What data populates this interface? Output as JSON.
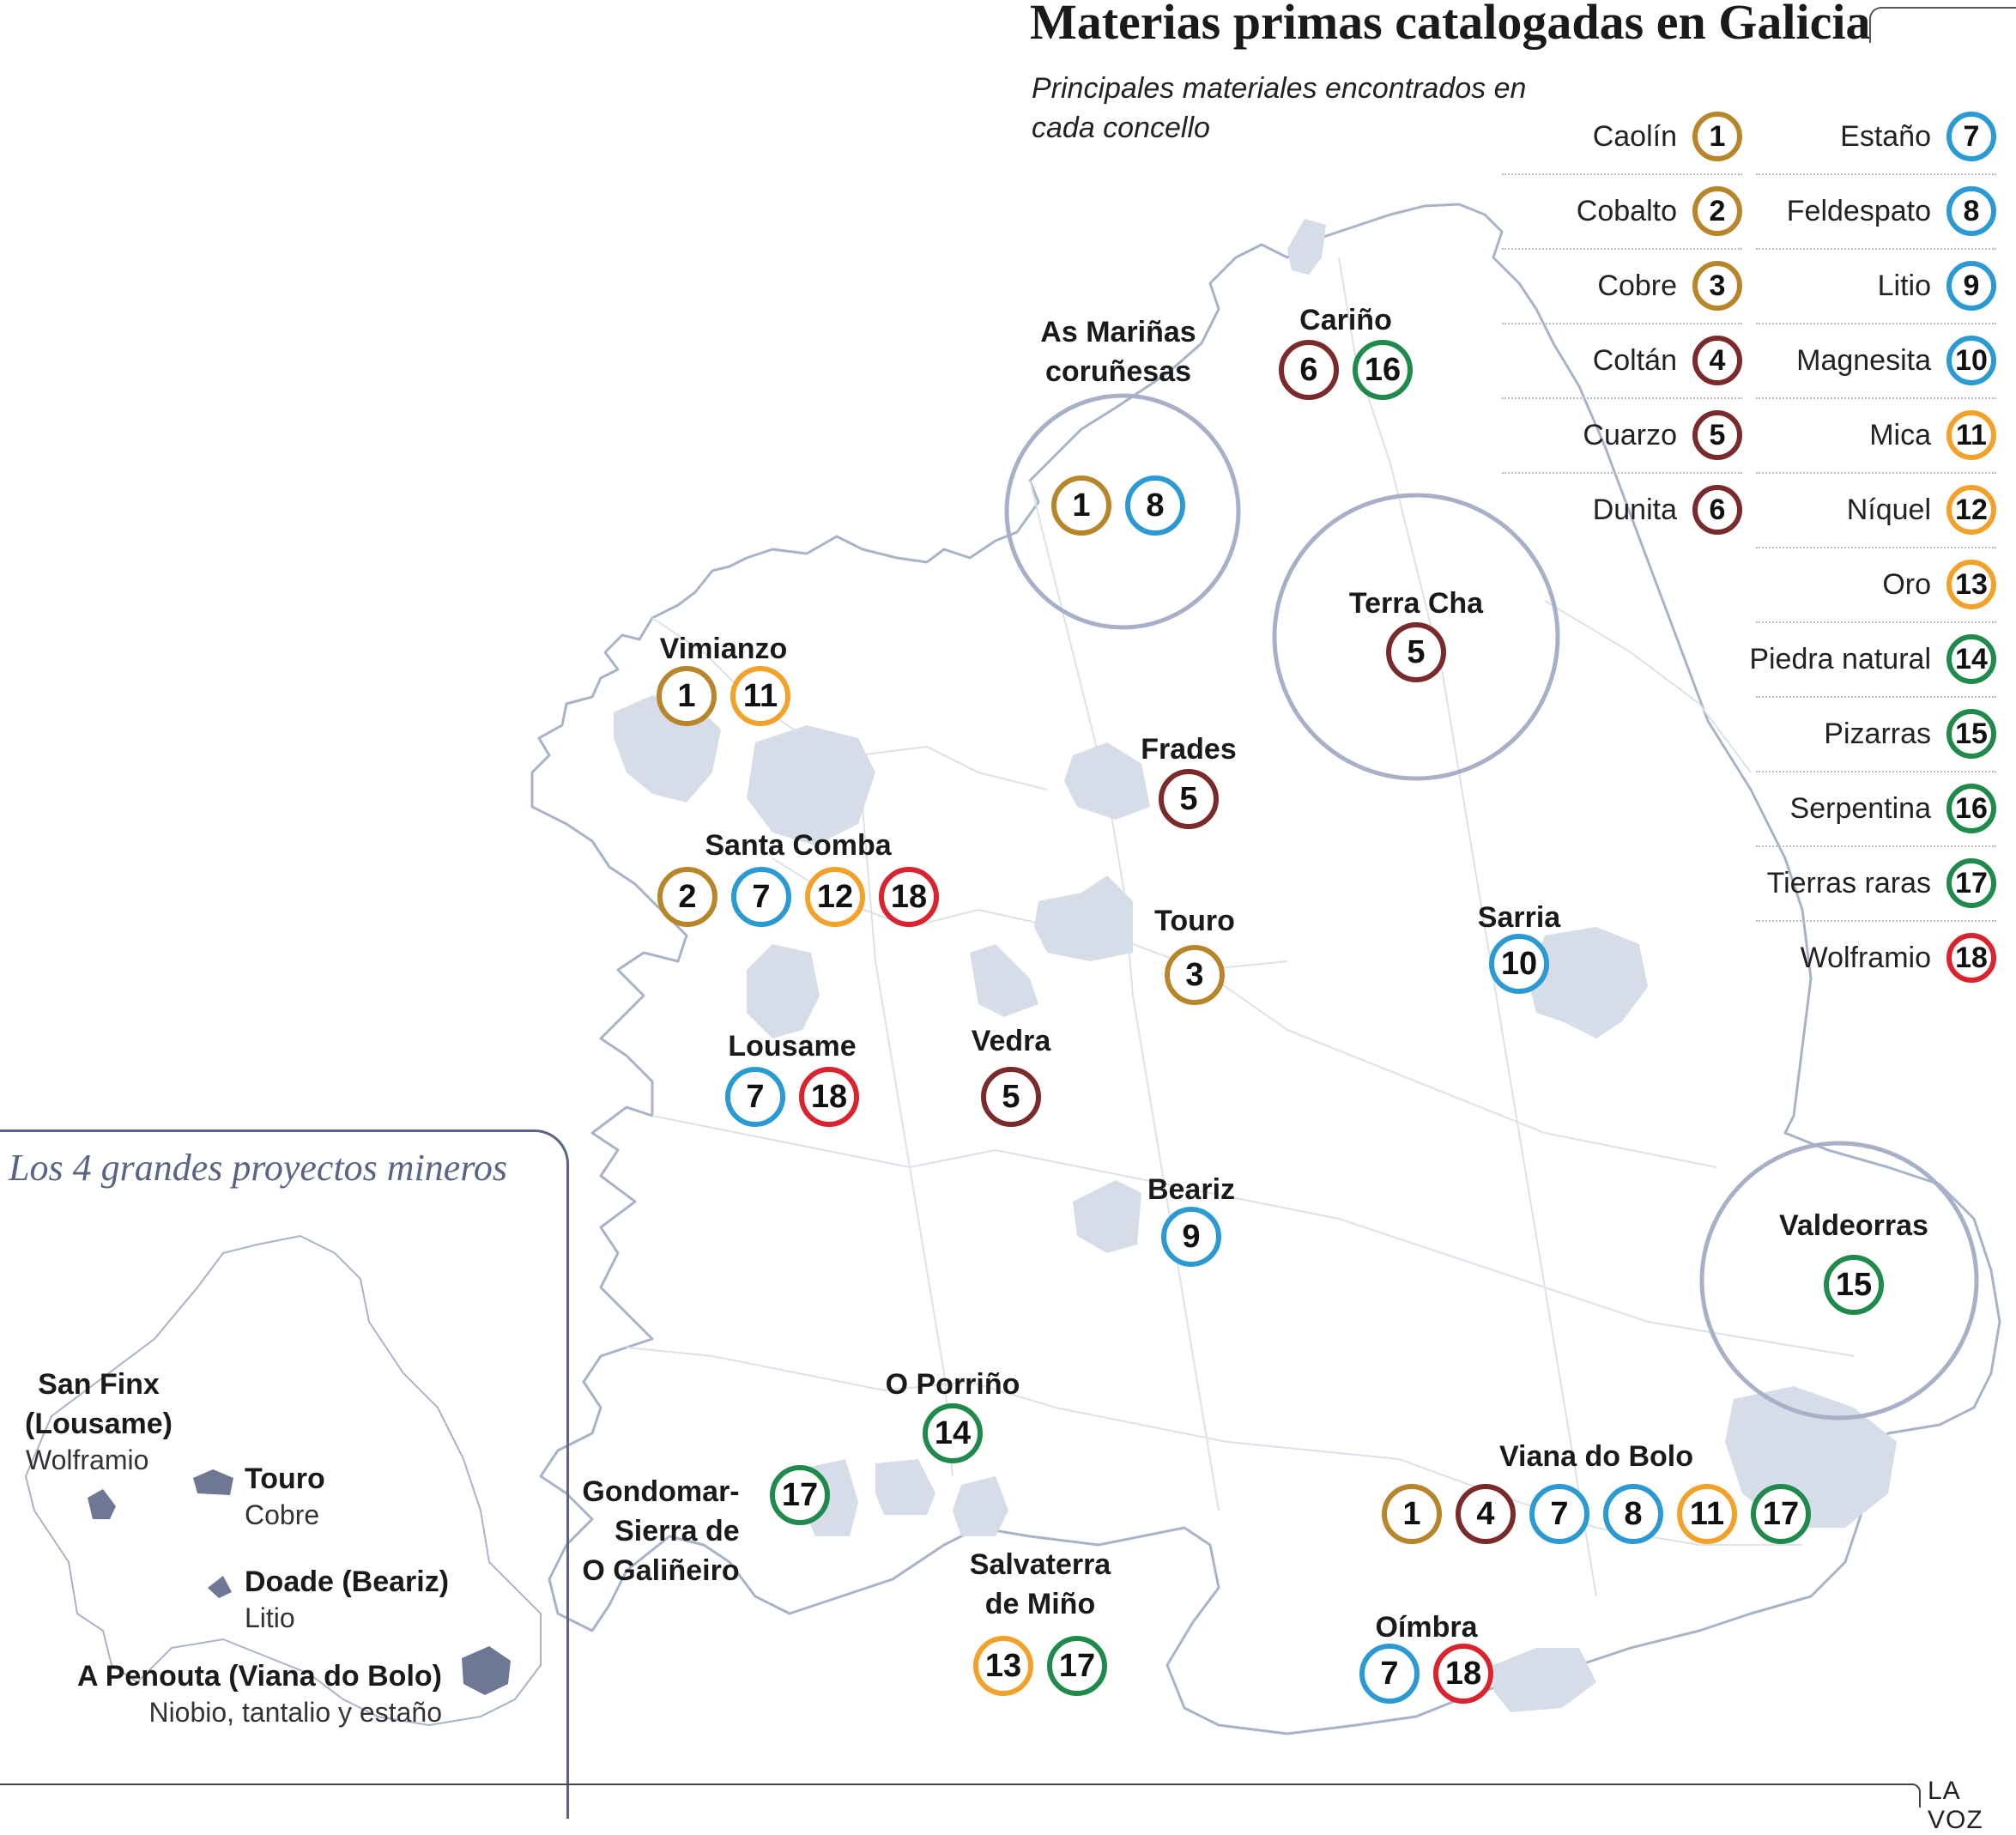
{
  "title": "Materias primas catalogadas en Galicia",
  "subtitle": "Principales materiales encontrados en cada concello",
  "colors": {
    "brown_gold": "#b8862a",
    "dark_red": "#7a2a2a",
    "blue": "#2b9ad3",
    "orange": "#f2a22a",
    "green": "#1f8a4c",
    "red": "#d9232e",
    "highlight_fill": "#d6dce8",
    "circle_outline": "#a7b0c6",
    "inset_accent": "#5b6485",
    "inset_project_fill": "#6e7894"
  },
  "legend": [
    {
      "label": "Caolín",
      "num": "1",
      "color": "#b8862a"
    },
    {
      "label": "Cobalto",
      "num": "2",
      "color": "#b8862a"
    },
    {
      "label": "Cobre",
      "num": "3",
      "color": "#b8862a"
    },
    {
      "label": "Coltán",
      "num": "4",
      "color": "#7a2a2a"
    },
    {
      "label": "Cuarzo",
      "num": "5",
      "color": "#7a2a2a"
    },
    {
      "label": "Dunita",
      "num": "6",
      "color": "#7a2a2a"
    },
    {
      "label": "Estaño",
      "num": "7",
      "color": "#2b9ad3"
    },
    {
      "label": "Feldespato",
      "num": "8",
      "color": "#2b9ad3"
    },
    {
      "label": "Litio",
      "num": "9",
      "color": "#2b9ad3"
    },
    {
      "label": "Magnesita",
      "num": "10",
      "color": "#2b9ad3"
    },
    {
      "label": "Mica",
      "num": "11",
      "color": "#f2a22a"
    },
    {
      "label": "Níquel",
      "num": "12",
      "color": "#f2a22a"
    },
    {
      "label": "Oro",
      "num": "13",
      "color": "#f2a22a"
    },
    {
      "label": "Piedra natural",
      "num": "14",
      "color": "#1f8a4c"
    },
    {
      "label": "Pizarras",
      "num": "15",
      "color": "#1f8a4c"
    },
    {
      "label": "Serpentina",
      "num": "16",
      "color": "#1f8a4c"
    },
    {
      "label": "Tierras raras",
      "num": "17",
      "color": "#1f8a4c"
    },
    {
      "label": "Wolframio",
      "num": "18",
      "color": "#d9232e"
    }
  ],
  "places": [
    {
      "name": "As Mariñas coruñesas",
      "materials": [
        "1",
        "8"
      ]
    },
    {
      "name": "Cariño",
      "materials": [
        "6",
        "16"
      ]
    },
    {
      "name": "Terra Cha",
      "materials": [
        "5"
      ]
    },
    {
      "name": "Vimianzo",
      "materials": [
        "1",
        "11"
      ]
    },
    {
      "name": "Frades",
      "materials": [
        "5"
      ]
    },
    {
      "name": "Santa Comba",
      "materials": [
        "2",
        "7",
        "12",
        "18"
      ]
    },
    {
      "name": "Touro",
      "materials": [
        "3"
      ]
    },
    {
      "name": "Sarria",
      "materials": [
        "10"
      ]
    },
    {
      "name": "Lousame",
      "materials": [
        "7",
        "18"
      ]
    },
    {
      "name": "Vedra",
      "materials": [
        "5"
      ]
    },
    {
      "name": "Beariz",
      "materials": [
        "9"
      ]
    },
    {
      "name": "Valdeorras",
      "materials": [
        "15"
      ]
    },
    {
      "name": "O Porriño",
      "materials": [
        "14"
      ]
    },
    {
      "name": "Gondomar-Sierra de O Galiñeiro",
      "materials": [
        "17"
      ]
    },
    {
      "name": "Viana do Bolo",
      "materials": [
        "1",
        "4",
        "7",
        "8",
        "11",
        "17"
      ]
    },
    {
      "name": "Salvaterra de Miño",
      "materials": [
        "13",
        "17"
      ]
    },
    {
      "name": "Oímbra",
      "materials": [
        "7",
        "18"
      ]
    }
  ],
  "inset": {
    "title": "Los 4 grandes proyectos mineros",
    "projects": [
      {
        "name": "San Finx (Lousame)",
        "material": "Wolframio"
      },
      {
        "name": "Touro",
        "material": "Cobre"
      },
      {
        "name": "Doade (Beariz)",
        "material": "Litio"
      },
      {
        "name": "A Penouta (Viana do Bolo)",
        "material": "Niobio, tantalio y estaño"
      }
    ]
  },
  "brand": "LA VOZ"
}
